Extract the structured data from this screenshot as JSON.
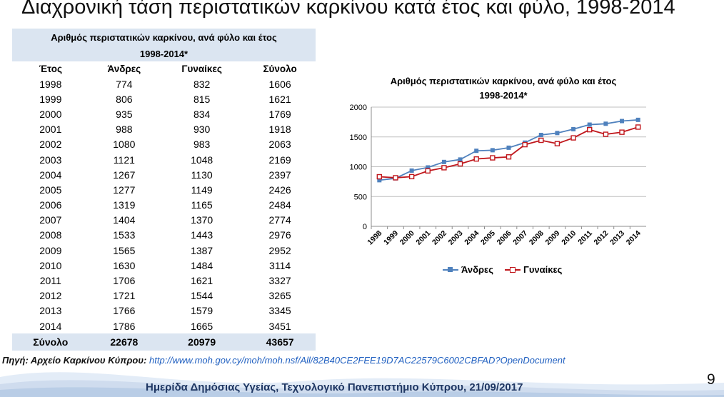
{
  "slide": {
    "title": "Διαχρονική τάση περιστατικών καρκίνου κατά έτος και φύλο, 1998-2014",
    "page_number": "9",
    "footer": "Ημερίδα Δημόσιας Υγείας, Τεχνολογικό Πανεπιστήμιο Κύπρου, 21/09/2017",
    "source_label": "Πηγή: Αρχείο Καρκίνου Κύπρου:",
    "source_url": "http://www.moh.gov.cy/moh/moh.nsf/All/82B40CE2FEE19D7AC22579C6002CBFAD?OpenDocument"
  },
  "table": {
    "caption_line1": "Αριθμός περιστατικών καρκίνου, ανά φύλο και έτος",
    "caption_line2": "1998-2014*",
    "headers": [
      "Έτος",
      "Άνδρες",
      "Γυναίκες",
      "Σύνολο"
    ],
    "rows": [
      [
        "1998",
        "774",
        "832",
        "1606"
      ],
      [
        "1999",
        "806",
        "815",
        "1621"
      ],
      [
        "2000",
        "935",
        "834",
        "1769"
      ],
      [
        "2001",
        "988",
        "930",
        "1918"
      ],
      [
        "2002",
        "1080",
        "983",
        "2063"
      ],
      [
        "2003",
        "1121",
        "1048",
        "2169"
      ],
      [
        "2004",
        "1267",
        "1130",
        "2397"
      ],
      [
        "2005",
        "1277",
        "1149",
        "2426"
      ],
      [
        "2006",
        "1319",
        "1165",
        "2484"
      ],
      [
        "2007",
        "1404",
        "1370",
        "2774"
      ],
      [
        "2008",
        "1533",
        "1443",
        "2976"
      ],
      [
        "2009",
        "1565",
        "1387",
        "2952"
      ],
      [
        "2010",
        "1630",
        "1484",
        "3114"
      ],
      [
        "2011",
        "1706",
        "1621",
        "3327"
      ],
      [
        "2012",
        "1721",
        "1544",
        "3265"
      ],
      [
        "2013",
        "1766",
        "1579",
        "3345"
      ],
      [
        "2014",
        "1786",
        "1665",
        "3451"
      ]
    ],
    "total": [
      "Σύνολο",
      "22678",
      "20979",
      "43657"
    ]
  },
  "chart_data": {
    "type": "line",
    "title_line1": "Αριθμός περιστατικών καρκίνου, ανά φύλο και έτος",
    "title_line2": "1998-2014*",
    "categories": [
      "1998",
      "1999",
      "2000",
      "2001",
      "2002",
      "2003",
      "2004",
      "2005",
      "2006",
      "2007",
      "2008",
      "2009",
      "2010",
      "2011",
      "2012",
      "2013",
      "2014"
    ],
    "series": [
      {
        "name": "Άνδρες",
        "color": "#4f81bd",
        "marker": "square-filled",
        "values": [
          774,
          806,
          935,
          988,
          1080,
          1121,
          1267,
          1277,
          1319,
          1404,
          1533,
          1565,
          1630,
          1706,
          1721,
          1766,
          1786
        ]
      },
      {
        "name": "Γυναίκες",
        "color": "#c0171c",
        "marker": "square-hollow",
        "values": [
          832,
          815,
          834,
          930,
          983,
          1048,
          1130,
          1149,
          1165,
          1370,
          1443,
          1387,
          1484,
          1621,
          1544,
          1579,
          1665
        ]
      }
    ],
    "ylim": [
      0,
      2000
    ],
    "yticks": [
      "0",
      "500",
      "1000",
      "1500",
      "2000"
    ],
    "grid": true,
    "legend_position": "bottom"
  }
}
